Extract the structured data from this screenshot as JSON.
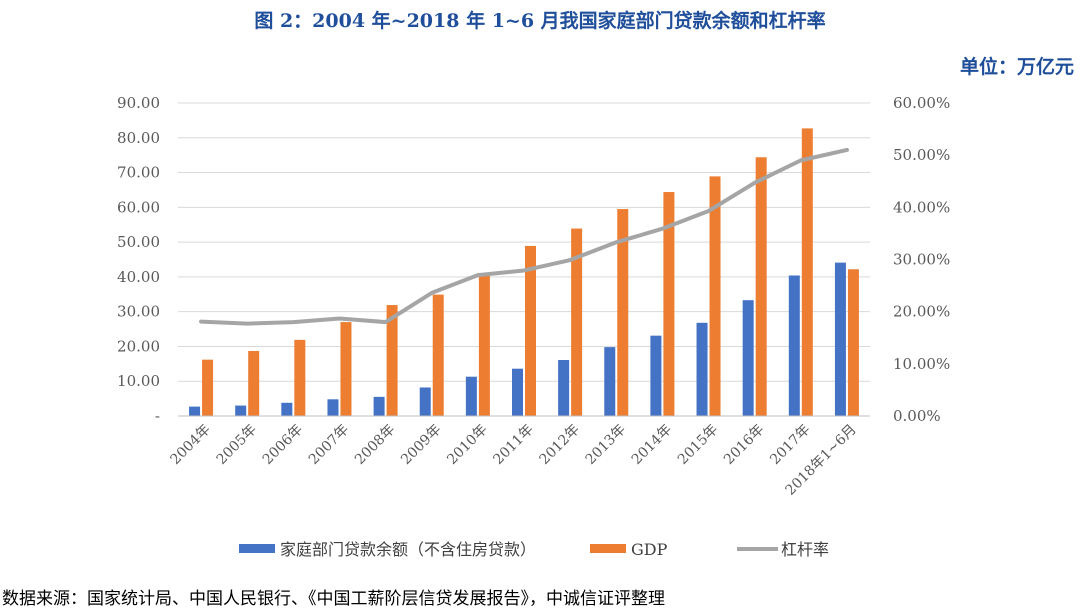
{
  "page": {
    "title": "图 2：2004 年~2018 年 1~6 月我国家庭部门贷款余额和杠杆率",
    "unit": "单位：万亿元",
    "source": "数据来源：国家统计局、中国人民银行、《中国工薪阶层信贷发展报告》，中诚信证评整理"
  },
  "chart_data": {
    "type": "bar",
    "categories": [
      "2004年",
      "2005年",
      "2006年",
      "2007年",
      "2008年",
      "2009年",
      "2010年",
      "2011年",
      "2012年",
      "2013年",
      "2014年",
      "2015年",
      "2016年",
      "2017年",
      "2018年1~6月"
    ],
    "series": [
      {
        "name": "家庭部门贷款余额（不含住房贷款）",
        "type": "bar",
        "axis": "left",
        "color": "#4472c4",
        "values": [
          2.7,
          3.0,
          3.8,
          4.8,
          5.5,
          8.2,
          11.3,
          13.6,
          16.1,
          19.8,
          23.1,
          26.8,
          33.3,
          40.4,
          44.1
        ]
      },
      {
        "name": "GDP",
        "type": "bar",
        "axis": "left",
        "color": "#ed7d31",
        "values": [
          16.2,
          18.7,
          21.9,
          27.0,
          31.9,
          34.9,
          40.9,
          48.9,
          53.9,
          59.5,
          64.4,
          68.9,
          74.4,
          82.7,
          42.2
        ]
      },
      {
        "name": "杠杆率",
        "type": "line",
        "axis": "right",
        "color": "#a5a5a5",
        "values": [
          0.181,
          0.177,
          0.18,
          0.187,
          0.18,
          0.236,
          0.27,
          0.279,
          0.299,
          0.333,
          0.359,
          0.393,
          0.447,
          0.49,
          0.51
        ]
      }
    ],
    "ylim_left": [
      0,
      90
    ],
    "ylim_right": [
      0,
      0.6
    ],
    "yticks_left": [
      "-",
      "10.00",
      "20.00",
      "30.00",
      "40.00",
      "50.00",
      "60.00",
      "70.00",
      "80.00",
      "90.00"
    ],
    "yticks_right": [
      "0.00%",
      "10.00%",
      "20.00%",
      "30.00%",
      "40.00%",
      "50.00%",
      "60.00%"
    ],
    "grid": true,
    "legend_position": "bottom"
  }
}
